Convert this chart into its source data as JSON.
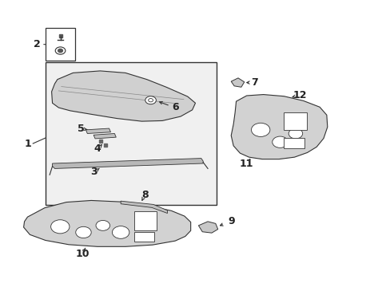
{
  "bg_color": "#ffffff",
  "line_color": "#333333",
  "label_color": "#222222",
  "font_size_label": 9
}
